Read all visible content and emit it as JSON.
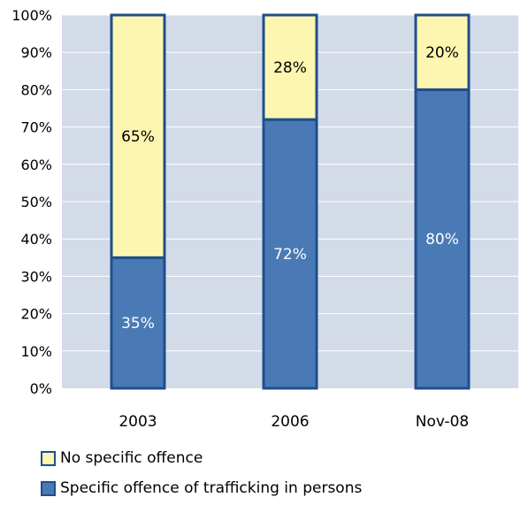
{
  "chart_data": {
    "type": "bar",
    "stacked": true,
    "categories": [
      "2003",
      "2006",
      "Nov-08"
    ],
    "series": [
      {
        "name": "Specific offence of trafficking in persons",
        "values": [
          35,
          72,
          80
        ],
        "labels": [
          "35%",
          "72%",
          "80%"
        ],
        "color": "#4a7ab5",
        "label_color": "#ffffff"
      },
      {
        "name": "No specific offence",
        "values": [
          65,
          28,
          20
        ],
        "labels": [
          "65%",
          "28%",
          "20%"
        ],
        "color": "#fdf6b0",
        "label_color": "#000000"
      }
    ],
    "ylim": [
      0,
      100
    ],
    "yticks": [
      "0%",
      "10%",
      "20%",
      "30%",
      "40%",
      "50%",
      "60%",
      "70%",
      "80%",
      "90%",
      "100%"
    ],
    "grid": true,
    "plot_background": "#d3dae8",
    "bar_border_color": "#1f4e8c",
    "legend_position": "bottom-left"
  },
  "legend": [
    {
      "label": "No specific offence",
      "color": "#fdf6b0"
    },
    {
      "label": "Specific offence of trafficking in persons",
      "color": "#4a7ab5"
    }
  ]
}
